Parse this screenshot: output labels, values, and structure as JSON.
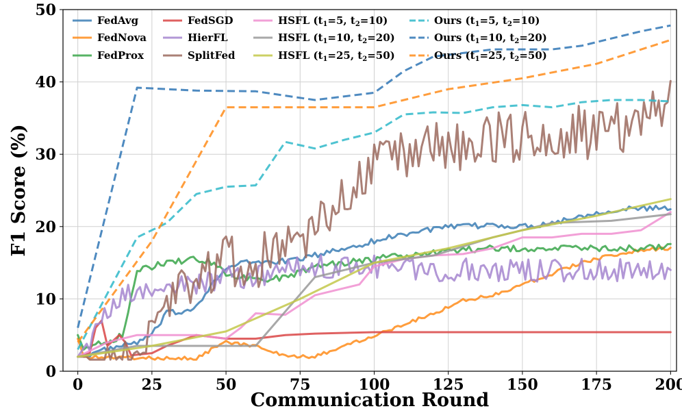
{
  "chart_data": {
    "type": "line",
    "title": "",
    "xlabel": "Communication Round",
    "ylabel": "F1 Score (%)",
    "xlim": [
      -5,
      202
    ],
    "ylim": [
      0,
      50
    ],
    "xticks": [
      0,
      25,
      50,
      75,
      100,
      125,
      150,
      175,
      200
    ],
    "yticks": [
      0,
      10,
      20,
      30,
      40,
      50
    ],
    "grid": true,
    "legend_position": "top-left",
    "series": [
      {
        "name": "FedAvg",
        "label": "FedAvg",
        "color": "#3b7eb5",
        "dash": "solid",
        "noise": 0.4,
        "points": [
          [
            0,
            2
          ],
          [
            10,
            3
          ],
          [
            20,
            4
          ],
          [
            25,
            5
          ],
          [
            30,
            8
          ],
          [
            35,
            8.2
          ],
          [
            40,
            9
          ],
          [
            45,
            12
          ],
          [
            50,
            14
          ],
          [
            55,
            15
          ],
          [
            70,
            15.2
          ],
          [
            80,
            16
          ],
          [
            90,
            17
          ],
          [
            100,
            18
          ],
          [
            110,
            19
          ],
          [
            120,
            19.7
          ],
          [
            130,
            20
          ],
          [
            140,
            20.2
          ],
          [
            150,
            20
          ],
          [
            160,
            20.5
          ],
          [
            170,
            21.5
          ],
          [
            180,
            22.3
          ],
          [
            190,
            22.5
          ],
          [
            200,
            22.5
          ]
        ]
      },
      {
        "name": "FedNova",
        "label": "FedNova",
        "color": "#ff8c1a",
        "dash": "solid",
        "noise": 0.25,
        "points": [
          [
            0,
            4.5
          ],
          [
            2,
            2
          ],
          [
            25,
            1.8
          ],
          [
            40,
            1.8
          ],
          [
            45,
            3
          ],
          [
            50,
            4
          ],
          [
            60,
            3.5
          ],
          [
            70,
            2
          ],
          [
            80,
            2
          ],
          [
            90,
            3.5
          ],
          [
            100,
            5
          ],
          [
            110,
            6.5
          ],
          [
            120,
            8
          ],
          [
            130,
            9.8
          ],
          [
            140,
            10.5
          ],
          [
            150,
            12
          ],
          [
            160,
            13.5
          ],
          [
            170,
            15
          ],
          [
            180,
            16
          ],
          [
            190,
            16.8
          ],
          [
            200,
            17
          ]
        ]
      },
      {
        "name": "FedProx",
        "label": "FedProx",
        "color": "#3aa64a",
        "dash": "solid",
        "noise": 0.45,
        "points": [
          [
            0,
            5
          ],
          [
            2,
            3
          ],
          [
            5,
            4
          ],
          [
            10,
            4
          ],
          [
            15,
            5
          ],
          [
            18,
            10
          ],
          [
            20,
            14
          ],
          [
            30,
            15
          ],
          [
            40,
            15.5
          ],
          [
            45,
            15
          ],
          [
            50,
            13.5
          ],
          [
            60,
            12.5
          ],
          [
            70,
            13
          ],
          [
            80,
            14.5
          ],
          [
            90,
            15
          ],
          [
            100,
            15.5
          ],
          [
            120,
            16.5
          ],
          [
            140,
            17
          ],
          [
            160,
            17
          ],
          [
            180,
            17
          ],
          [
            200,
            17.2
          ]
        ]
      },
      {
        "name": "FedSGD",
        "label": "FedSGD",
        "color": "#d94545",
        "dash": "solid",
        "noise": 0,
        "points": [
          [
            0,
            2
          ],
          [
            4,
            2.5
          ],
          [
            6,
            6
          ],
          [
            8,
            7
          ],
          [
            10,
            3.5
          ],
          [
            14,
            5
          ],
          [
            16,
            4
          ],
          [
            18,
            2.2
          ],
          [
            25,
            2.5
          ],
          [
            30,
            3.5
          ],
          [
            40,
            5
          ],
          [
            50,
            4.5
          ],
          [
            60,
            4.5
          ],
          [
            70,
            5
          ],
          [
            80,
            5.2
          ],
          [
            100,
            5.4
          ],
          [
            150,
            5.4
          ],
          [
            200,
            5.4
          ]
        ]
      },
      {
        "name": "HierFL",
        "label": "HierFL",
        "color": "#a485cf",
        "dash": "solid",
        "noise": 1.6,
        "points": [
          [
            0,
            2
          ],
          [
            5,
            5
          ],
          [
            10,
            8
          ],
          [
            15,
            10
          ],
          [
            20,
            11
          ],
          [
            30,
            11.5
          ],
          [
            40,
            12
          ],
          [
            50,
            13
          ],
          [
            60,
            13
          ],
          [
            70,
            14
          ],
          [
            80,
            14.5
          ],
          [
            100,
            14.5
          ],
          [
            120,
            14
          ],
          [
            140,
            14
          ],
          [
            160,
            14
          ],
          [
            180,
            14
          ],
          [
            200,
            14
          ]
        ]
      },
      {
        "name": "SplitFed",
        "label": "SplitFed",
        "color": "#9b6a5e",
        "dash": "solid",
        "noise": 3.8,
        "points": [
          [
            0,
            2
          ],
          [
            10,
            2
          ],
          [
            20,
            2
          ],
          [
            25,
            5
          ],
          [
            30,
            10
          ],
          [
            40,
            13
          ],
          [
            50,
            15
          ],
          [
            60,
            15
          ],
          [
            70,
            18
          ],
          [
            80,
            20
          ],
          [
            90,
            24
          ],
          [
            100,
            28
          ],
          [
            110,
            30
          ],
          [
            120,
            31
          ],
          [
            130,
            31
          ],
          [
            140,
            32
          ],
          [
            150,
            33
          ],
          [
            160,
            33
          ],
          [
            170,
            33
          ],
          [
            180,
            33
          ],
          [
            190,
            35
          ],
          [
            200,
            38
          ]
        ]
      },
      {
        "name": "HSFL (t1=5, t2=10)",
        "label": "HSFL (t",
        "sub1": "1",
        "mid": "=5, t",
        "sub2": "2",
        "tail": "=10)",
        "color": "#f08fd0",
        "dash": "solid",
        "noise": 0,
        "points": [
          [
            0,
            2
          ],
          [
            10,
            4
          ],
          [
            20,
            5
          ],
          [
            40,
            5
          ],
          [
            50,
            4.5
          ],
          [
            55,
            6
          ],
          [
            60,
            8
          ],
          [
            70,
            7.8
          ],
          [
            80,
            10.5
          ],
          [
            90,
            11.5
          ],
          [
            95,
            12
          ],
          [
            100,
            14.5
          ],
          [
            110,
            15.5
          ],
          [
            120,
            16
          ],
          [
            130,
            16.2
          ],
          [
            140,
            17
          ],
          [
            150,
            18.5
          ],
          [
            160,
            18.5
          ],
          [
            170,
            19
          ],
          [
            180,
            19
          ],
          [
            190,
            19.5
          ],
          [
            200,
            22
          ]
        ]
      },
      {
        "name": "HSFL (t1=10, t2=20)",
        "label": "HSFL (t",
        "sub1": "1",
        "mid": "=10, t",
        "sub2": "2",
        "tail": "=20)",
        "color": "#999999",
        "dash": "solid",
        "noise": 0,
        "points": [
          [
            0,
            2
          ],
          [
            20,
            3.5
          ],
          [
            40,
            3.5
          ],
          [
            60,
            3.5
          ],
          [
            80,
            13
          ],
          [
            90,
            14
          ],
          [
            100,
            15
          ],
          [
            120,
            16
          ],
          [
            140,
            18.5
          ],
          [
            160,
            20.5
          ],
          [
            180,
            20.8
          ],
          [
            200,
            21.7
          ]
        ]
      },
      {
        "name": "HSFL (t1=25, t2=50)",
        "label": "HSFL (t",
        "sub1": "1",
        "mid": "=25, t",
        "sub2": "2",
        "tail": "=50)",
        "color": "#c3c84a",
        "dash": "solid",
        "noise": 0,
        "points": [
          [
            0,
            2
          ],
          [
            25,
            3.5
          ],
          [
            50,
            5.5
          ],
          [
            75,
            10
          ],
          [
            100,
            15
          ],
          [
            125,
            17
          ],
          [
            150,
            19.5
          ],
          [
            175,
            21.5
          ],
          [
            200,
            23.8
          ]
        ]
      },
      {
        "name": "Ours (t1=5, t2=10)",
        "label": "Ours (t",
        "sub1": "1",
        "mid": "=5, t",
        "sub2": "2",
        "tail": "=10)",
        "color": "#2fb8c9",
        "dash": "dash",
        "noise": 0,
        "points": [
          [
            0,
            3
          ],
          [
            20,
            18.5
          ],
          [
            30,
            20.5
          ],
          [
            40,
            24.5
          ],
          [
            50,
            25.5
          ],
          [
            60,
            25.7
          ],
          [
            70,
            31.7
          ],
          [
            80,
            30.8
          ],
          [
            90,
            32
          ],
          [
            100,
            33
          ],
          [
            110,
            35.5
          ],
          [
            120,
            35.8
          ],
          [
            130,
            35.7
          ],
          [
            140,
            36.5
          ],
          [
            150,
            36.8
          ],
          [
            160,
            36.5
          ],
          [
            170,
            37.2
          ],
          [
            180,
            37.5
          ],
          [
            190,
            37.5
          ],
          [
            200,
            37.3
          ]
        ]
      },
      {
        "name": "Ours (t1=10, t2=20)",
        "label": "Ours (t",
        "sub1": "1",
        "mid": "=10, t",
        "sub2": "2",
        "tail": "=20)",
        "color": "#2f75b5",
        "dash": "dash",
        "noise": 0,
        "points": [
          [
            0,
            6
          ],
          [
            20,
            39.2
          ],
          [
            40,
            38.8
          ],
          [
            60,
            38.7
          ],
          [
            80,
            37.5
          ],
          [
            100,
            38.5
          ],
          [
            110,
            41.5
          ],
          [
            120,
            43.5
          ],
          [
            130,
            44
          ],
          [
            140,
            44.5
          ],
          [
            150,
            44.5
          ],
          [
            160,
            44.5
          ],
          [
            170,
            45
          ],
          [
            180,
            46
          ],
          [
            190,
            47
          ],
          [
            200,
            47.8
          ]
        ]
      },
      {
        "name": "Ours (t1=25, t2=50)",
        "label": "Ours (t",
        "sub1": "1",
        "mid": "=25, t",
        "sub2": "2",
        "tail": "=50)",
        "color": "#ff8c1a",
        "dash": "dash",
        "noise": 0,
        "points": [
          [
            0,
            4
          ],
          [
            25,
            18
          ],
          [
            50,
            36.5
          ],
          [
            75,
            36.5
          ],
          [
            100,
            36.5
          ],
          [
            125,
            39
          ],
          [
            150,
            40.5
          ],
          [
            175,
            42.5
          ],
          [
            200,
            45.8
          ]
        ]
      }
    ]
  }
}
